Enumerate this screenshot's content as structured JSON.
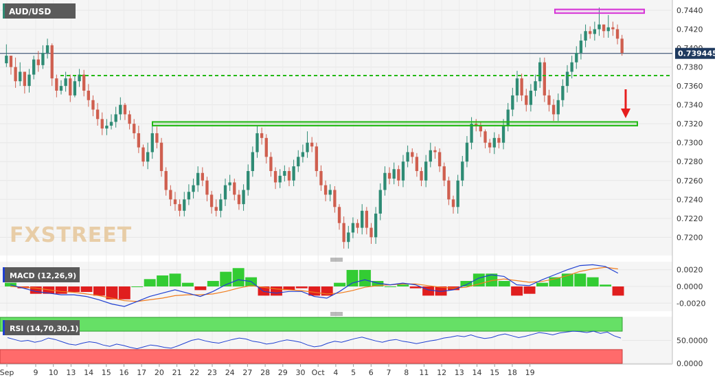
{
  "instrument": "AUD/USD",
  "price_badge": "0.739445",
  "watermark": "FXSTREET",
  "colors": {
    "up": "#2e8b74",
    "down": "#cf5f4f",
    "support": "#22b814",
    "resistance_box": "#d633d6",
    "arrow": "#e61e1e",
    "macd_line": "#1f3fd1",
    "signal_line": "#f07d1e",
    "hist_pos": "#33cc33",
    "hist_neg": "#e01e1e",
    "rsi_line": "#1f3fd1",
    "rsi_overbought": "#66e066",
    "rsi_oversold": "#ff6b6b"
  },
  "chart_data": [
    {
      "panel": "price",
      "type": "candlestick",
      "title": "AUD/USD",
      "ylim": [
        0.7185,
        0.7448
      ],
      "y_ticks": [
        "0.7440",
        "0.7420",
        "0.7400",
        "0.7380",
        "0.7360",
        "0.7340",
        "0.7320",
        "0.7300",
        "0.7280",
        "0.7260",
        "0.7240",
        "0.7220",
        "0.7200"
      ],
      "x_ticks": [
        "Sep",
        "9",
        "10",
        "13",
        "14",
        "15",
        "16",
        "17",
        "20",
        "21",
        "22",
        "23",
        "24",
        "27",
        "28",
        "29",
        "30",
        "Oct",
        "4",
        "5",
        "6",
        "7",
        "8",
        "11",
        "12",
        "13",
        "14",
        "15",
        "18",
        "19"
      ],
      "last_price": 0.739445,
      "annotations": [
        {
          "kind": "horizontal-line",
          "style": "dashed",
          "value": 0.7371,
          "color": "support"
        },
        {
          "kind": "zone",
          "from": 0.7318,
          "to": 0.7322,
          "color": "support"
        },
        {
          "kind": "zone",
          "from": 0.7437,
          "to": 0.7441,
          "color": "resistance_box"
        },
        {
          "kind": "arrow",
          "direction": "down",
          "color": "arrow"
        }
      ],
      "note": "hourly candles, approximate path of closes",
      "closes": [
        0.7392,
        0.738,
        0.7365,
        0.7375,
        0.736,
        0.7372,
        0.7388,
        0.7382,
        0.7395,
        0.7403,
        0.7368,
        0.7355,
        0.736,
        0.7368,
        0.735,
        0.7365,
        0.7372,
        0.7355,
        0.7345,
        0.7335,
        0.7325,
        0.7315,
        0.7318,
        0.7322,
        0.733,
        0.734,
        0.733,
        0.732,
        0.731,
        0.7295,
        0.728,
        0.729,
        0.731,
        0.73,
        0.727,
        0.725,
        0.724,
        0.7235,
        0.7228,
        0.724,
        0.7248,
        0.7255,
        0.7268,
        0.726,
        0.7245,
        0.7232,
        0.7228,
        0.724,
        0.7255,
        0.7258,
        0.7245,
        0.7235,
        0.725,
        0.727,
        0.729,
        0.731,
        0.7305,
        0.7285,
        0.727,
        0.7258,
        0.7265,
        0.727,
        0.726,
        0.7275,
        0.7285,
        0.729,
        0.73,
        0.7296,
        0.727,
        0.7255,
        0.7245,
        0.725,
        0.7232,
        0.7215,
        0.7195,
        0.7205,
        0.7215,
        0.721,
        0.7228,
        0.721,
        0.72,
        0.7225,
        0.725,
        0.7268,
        0.7262,
        0.7272,
        0.726,
        0.728,
        0.729,
        0.7285,
        0.727,
        0.726,
        0.728,
        0.7292,
        0.729,
        0.7275,
        0.726,
        0.724,
        0.7232,
        0.726,
        0.728,
        0.73,
        0.732,
        0.7318,
        0.7312,
        0.73,
        0.7295,
        0.7305,
        0.73,
        0.7318,
        0.7335,
        0.735,
        0.7368,
        0.735,
        0.734,
        0.7355,
        0.7365,
        0.7385,
        0.735,
        0.734,
        0.733,
        0.7345,
        0.736,
        0.7375,
        0.7385,
        0.7395,
        0.7408,
        0.7418,
        0.7415,
        0.742,
        0.7425,
        0.7418,
        0.7422,
        0.742,
        0.741,
        0.7395
      ],
      "highs": [
        0.7404,
        0.7392,
        0.739,
        0.7385,
        0.7372,
        0.7378,
        0.7392,
        0.7397,
        0.7403,
        0.741,
        0.7405,
        0.7372,
        0.7366,
        0.7375,
        0.7372,
        0.7371,
        0.7378,
        0.7377,
        0.7362,
        0.735,
        0.7342,
        0.7332,
        0.7325,
        0.733,
        0.7338,
        0.7348,
        0.7342,
        0.7334,
        0.7325,
        0.7318,
        0.7298,
        0.73,
        0.7318,
        0.7317,
        0.7305,
        0.7274,
        0.7255,
        0.7248,
        0.724,
        0.7248,
        0.7256,
        0.7262,
        0.7275,
        0.7274,
        0.7264,
        0.7249,
        0.724,
        0.7246,
        0.7262,
        0.7266,
        0.7262,
        0.725,
        0.7256,
        0.7277,
        0.7296,
        0.7318,
        0.7316,
        0.7309,
        0.729,
        0.7274,
        0.7272,
        0.7276,
        0.7274,
        0.7282,
        0.7292,
        0.7298,
        0.7312,
        0.7306,
        0.73,
        0.7276,
        0.726,
        0.7256,
        0.7254,
        0.7235,
        0.7222,
        0.7212,
        0.7221,
        0.7219,
        0.7235,
        0.7232,
        0.7215,
        0.7232,
        0.7257,
        0.7275,
        0.7274,
        0.7279,
        0.7276,
        0.7287,
        0.7297,
        0.7294,
        0.7289,
        0.7274,
        0.7287,
        0.73,
        0.7296,
        0.7294,
        0.7279,
        0.7264,
        0.7244,
        0.7266,
        0.7286,
        0.7307,
        0.7327,
        0.7325,
        0.7322,
        0.7314,
        0.7304,
        0.7311,
        0.7309,
        0.7325,
        0.7342,
        0.7358,
        0.7376,
        0.7373,
        0.7357,
        0.7362,
        0.7372,
        0.739,
        0.739,
        0.7356,
        0.7346,
        0.7352,
        0.7367,
        0.7382,
        0.7392,
        0.7402,
        0.7415,
        0.7425,
        0.7423,
        0.7428,
        0.7443,
        0.7425,
        0.7435,
        0.7428,
        0.7425,
        0.7414
      ],
      "lows": [
        0.738,
        0.7372,
        0.7358,
        0.736,
        0.7352,
        0.7353,
        0.7367,
        0.7375,
        0.7378,
        0.7389,
        0.736,
        0.7348,
        0.7351,
        0.7354,
        0.7343,
        0.7348,
        0.7359,
        0.7349,
        0.7338,
        0.7328,
        0.7318,
        0.7308,
        0.7308,
        0.7314,
        0.7316,
        0.7324,
        0.7324,
        0.7314,
        0.7304,
        0.7289,
        0.7275,
        0.7272,
        0.7283,
        0.7294,
        0.7264,
        0.7244,
        0.7233,
        0.7228,
        0.7222,
        0.7222,
        0.7234,
        0.7241,
        0.7248,
        0.7254,
        0.7238,
        0.7225,
        0.7222,
        0.7221,
        0.7233,
        0.7249,
        0.7239,
        0.7229,
        0.7228,
        0.7244,
        0.7264,
        0.7284,
        0.7298,
        0.7278,
        0.7264,
        0.7251,
        0.7252,
        0.7259,
        0.7254,
        0.7254,
        0.7269,
        0.7279,
        0.7284,
        0.729,
        0.7264,
        0.7249,
        0.7238,
        0.7238,
        0.7226,
        0.7208,
        0.7188,
        0.7188,
        0.7199,
        0.7204,
        0.7203,
        0.7203,
        0.7193,
        0.7193,
        0.7218,
        0.7244,
        0.7256,
        0.7256,
        0.7254,
        0.7253,
        0.7274,
        0.7278,
        0.7264,
        0.7254,
        0.7253,
        0.7274,
        0.7283,
        0.7269,
        0.7254,
        0.7234,
        0.7225,
        0.7225,
        0.7254,
        0.7274,
        0.7293,
        0.7312,
        0.7306,
        0.7294,
        0.7289,
        0.7288,
        0.7294,
        0.7293,
        0.7312,
        0.7328,
        0.7343,
        0.7344,
        0.7333,
        0.7333,
        0.7349,
        0.7358,
        0.7343,
        0.7333,
        0.7323,
        0.7323,
        0.7338,
        0.7353,
        0.7368,
        0.7378,
        0.7388,
        0.7401,
        0.741,
        0.7408,
        0.7413,
        0.7411,
        0.7411,
        0.7413,
        0.7404,
        0.7392
      ]
    },
    {
      "panel": "macd",
      "type": "line",
      "title": "MACD (12,26,9)",
      "ylim": [
        -0.0028,
        0.0028
      ],
      "y_ticks": [
        "0.0020",
        "0.0000",
        "-0.0020"
      ],
      "series": [
        {
          "name": "MACD",
          "color": "macd_line",
          "values": [
            0.0002,
            -0.0002,
            -0.0006,
            -0.0008,
            -0.001,
            -0.001,
            -0.0012,
            -0.0016,
            -0.0021,
            -0.0024,
            -0.0018,
            -0.0012,
            -0.0008,
            -0.0004,
            -0.0008,
            -0.0012,
            -0.0006,
            0.0002,
            0.0008,
            0.0006,
            -0.0006,
            -0.0008,
            -0.0006,
            -0.0006,
            -0.0012,
            -0.0014,
            -0.0006,
            0.0004,
            0.0008,
            0.0004,
            0.0002,
            0.0004,
            0.0002,
            -0.0004,
            -0.0006,
            -0.0004,
            0.0002,
            0.001,
            0.0014,
            0.0012,
            0.0002,
            0.0001,
            0.0008,
            0.0014,
            0.002,
            0.0025,
            0.0026,
            0.0024,
            0.0016
          ]
        },
        {
          "name": "Signal",
          "color": "signal_line",
          "values": [
            0.0,
            -0.0001,
            -0.0002,
            -0.0004,
            -0.0006,
            -0.0007,
            -0.0009,
            -0.0011,
            -0.0014,
            -0.0017,
            -0.0018,
            -0.0016,
            -0.0014,
            -0.0011,
            -0.001,
            -0.001,
            -0.0009,
            -0.0006,
            -0.0002,
            0.0001,
            -0.0001,
            -0.0003,
            -0.0004,
            -0.0005,
            -0.0007,
            -0.0009,
            -0.0008,
            -0.0005,
            -0.0001,
            0.0001,
            0.0002,
            0.0003,
            0.0003,
            0.0001,
            -0.0001,
            -0.0002,
            -0.0001,
            0.0003,
            0.0007,
            0.0009,
            0.0007,
            0.0005,
            0.0006,
            0.0009,
            0.0013,
            0.0018,
            0.0021,
            0.0023,
            0.0021
          ]
        }
      ]
    },
    {
      "panel": "rsi",
      "type": "line",
      "title": "RSI (14,70,30,1)",
      "ylim": [
        0,
        100
      ],
      "y_ticks": [
        "50.0000",
        "0.0000"
      ],
      "overbought": 70,
      "oversold": 30,
      "series": [
        {
          "name": "RSI",
          "color": "rsi_line",
          "values": [
            56,
            52,
            48,
            50,
            46,
            49,
            55,
            52,
            47,
            42,
            40,
            44,
            47,
            45,
            40,
            37,
            42,
            39,
            35,
            32,
            36,
            40,
            38,
            35,
            33,
            38,
            44,
            50,
            53,
            49,
            46,
            44,
            48,
            52,
            55,
            53,
            48,
            46,
            42,
            44,
            48,
            51,
            49,
            46,
            40,
            36,
            38,
            44,
            48,
            46,
            50,
            54,
            57,
            53,
            49,
            46,
            50,
            52,
            48,
            46,
            43,
            46,
            49,
            51,
            55,
            57,
            60,
            58,
            62,
            57,
            54,
            56,
            61,
            64,
            60,
            56,
            59,
            63,
            67,
            65,
            62,
            66,
            68,
            70,
            69,
            67,
            70,
            65,
            68,
            60,
            55
          ]
        }
      ]
    }
  ]
}
